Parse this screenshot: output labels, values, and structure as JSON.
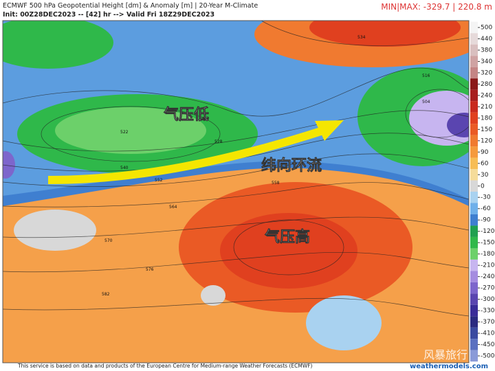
{
  "header": {
    "title": "ECMWF 500 hPa Geopotential Height [dm] & Anomaly [m] | 20-Year M-Climate",
    "init": "Init: 00Z28DEC2023 -- [42] hr --> Valid Fri 18Z29DEC2023",
    "minmax": "MIN|MAX: -329.7 | 220.8 m"
  },
  "annotations": [
    "气压低",
    "纬向环流",
    "气压高"
  ],
  "contour_labels": [
    "534",
    "516",
    "504",
    "522",
    "528",
    "540",
    "552",
    "558",
    "564",
    "570",
    "576",
    "582"
  ],
  "colorbar": {
    "ticks": [
      500,
      440,
      380,
      340,
      320,
      280,
      240,
      210,
      180,
      150,
      120,
      90,
      60,
      30,
      0,
      -30,
      -60,
      -90,
      -120,
      -150,
      -180,
      -210,
      -240,
      -270,
      -300,
      -330,
      -370,
      -410,
      -450,
      -500
    ],
    "colors": [
      "#f4f4f4",
      "#e6dada",
      "#d9bfbf",
      "#cfa3a3",
      "#c48585",
      "#8b1a1a",
      "#a82020",
      "#c82a1e",
      "#e0401f",
      "#ea5a25",
      "#f07a30",
      "#f59a3d",
      "#f7bd55",
      "#f5dc9a",
      "#d8d8d8",
      "#a9d2f0",
      "#6fb0ea",
      "#3f7fd0",
      "#20a050",
      "#2fb84a",
      "#6cd06a",
      "#c7b5f0",
      "#a58ce0",
      "#7d66cc",
      "#5a45b0",
      "#3a2c98",
      "#2a2a80",
      "#3a4aa0",
      "#5a70c0",
      "#8a9ad8"
    ]
  },
  "footer": {
    "credit": "This service is based on data and products of the European Centre for Medium-range Weather Forecasts (ECMWF)",
    "site": "weathermodels.com",
    "watermark": "风暴旅行"
  }
}
